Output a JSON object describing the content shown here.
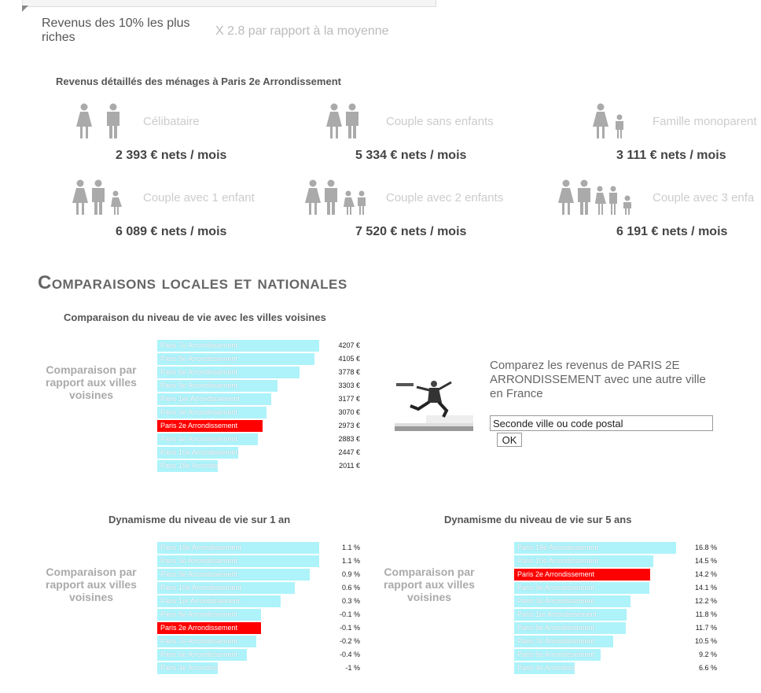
{
  "rich": {
    "label": "Revenus des 10% les plus riches",
    "value": "X 2.8 par rapport à la moyenne"
  },
  "households": {
    "title": "Revenus détaillés des ménages à Paris 2e Arrondissement",
    "items": [
      {
        "type": "Célibataire",
        "amount": "2 393 € nets / mois"
      },
      {
        "type": "Couple sans enfants",
        "amount": "5 334 € nets / mois"
      },
      {
        "type": "Famille monoparent",
        "amount": "3 111 € nets / mois"
      },
      {
        "type": "Couple avec 1 enfant",
        "amount": "6 089 € nets / mois"
      },
      {
        "type": "Couple avec 2 enfants",
        "amount": "7 520 € nets / mois"
      },
      {
        "type": "Couple avec 3 enfa",
        "amount": "6 191 € nets / mois"
      }
    ]
  },
  "section_title": "Comparaisons locales et nationales",
  "compare_label": "Comparaison par rapport aux villes voisines",
  "compare_form": {
    "text": "Comparez les revenus de PARIS 2E ARRONDISSEMENT avec une autre ville en France",
    "input_value": "Seconde ville ou code postal",
    "ok_label": "OK"
  },
  "colors": {
    "bar": "#aef3fa",
    "highlight": "#ff0000"
  },
  "chart_data": [
    {
      "type": "bar",
      "title": "Comparaison du niveau de vie avec les villes voisines",
      "categories": [
        "Paris 7e Arrondissement",
        "Paris 8e Arrondissement",
        "Paris 6e Arrondissement",
        "Paris 9e Arrondissement",
        "Paris 1er Arrondissement",
        "Paris 3e Arrondissement",
        "Paris 2e Arrondissement",
        "Paris 4e Arrondissement",
        "Paris 10e Arrondissement",
        "Paris 18e Arrondissement"
      ],
      "values": [
        4207,
        4105,
        3778,
        3303,
        3177,
        3070,
        2973,
        2883,
        2447,
        2011
      ],
      "labels": [
        "4207 €",
        "4105 €",
        "3778 €",
        "3303 €",
        "3177 €",
        "3070 €",
        "2973 €",
        "2883 €",
        "2447 €",
        "2011 €"
      ],
      "highlight": "Paris 2e Arrondissement",
      "min": 2011,
      "max": 4207
    },
    {
      "type": "bar",
      "title": "Dynamisme du niveau de vie sur 1 an",
      "categories": [
        "Paris 18e Arrondissement",
        "Paris 3e Arrondissement",
        "Paris 9e Arrondissement",
        "Paris 10e Arrondissement",
        "Paris 1er Arrondissement",
        "Paris 8e Arrondissement",
        "Paris 2e Arrondissement",
        "Paris 7e Arrondissement",
        "Paris 6e Arrondissement",
        "Paris 4e Arrondissement"
      ],
      "values": [
        1.1,
        1.1,
        0.9,
        0.6,
        0.3,
        -0.1,
        -0.1,
        -0.2,
        -0.4,
        -1
      ],
      "labels": [
        "1.1 %",
        "1.1 %",
        "0.9 %",
        "0.6 %",
        "0.3 %",
        "-0.1 %",
        "-0.1 %",
        "-0.2 %",
        "-0.4 %",
        "-1 %"
      ],
      "highlight": "Paris 2e Arrondissement",
      "min": -1,
      "max": 1.1
    },
    {
      "type": "bar",
      "title": "Dynamisme du niveau de vie sur 5 ans",
      "categories": [
        "Paris 18e Arrondissement",
        "Paris 10e Arrondissement",
        "Paris 2e Arrondissement",
        "Paris 9e Arrondissement",
        "Paris 3e Arrondissement",
        "Paris 1er Arrondissement",
        "Paris 8e Arrondissement",
        "Paris 7e Arrondissement",
        "Paris 6e Arrondissement",
        "Paris 4e Arrondissement"
      ],
      "values": [
        16.8,
        14.5,
        14.2,
        14.1,
        12.2,
        11.8,
        11.7,
        10.5,
        9.2,
        6.6
      ],
      "labels": [
        "16.8 %",
        "14.5 %",
        "14.2 %",
        "14.1 %",
        "12.2 %",
        "11.8 %",
        "11.7 %",
        "10.5 %",
        "9.2 %",
        "6.6 %"
      ],
      "highlight": "Paris 2e Arrondissement",
      "min": 6.6,
      "max": 16.8
    }
  ]
}
